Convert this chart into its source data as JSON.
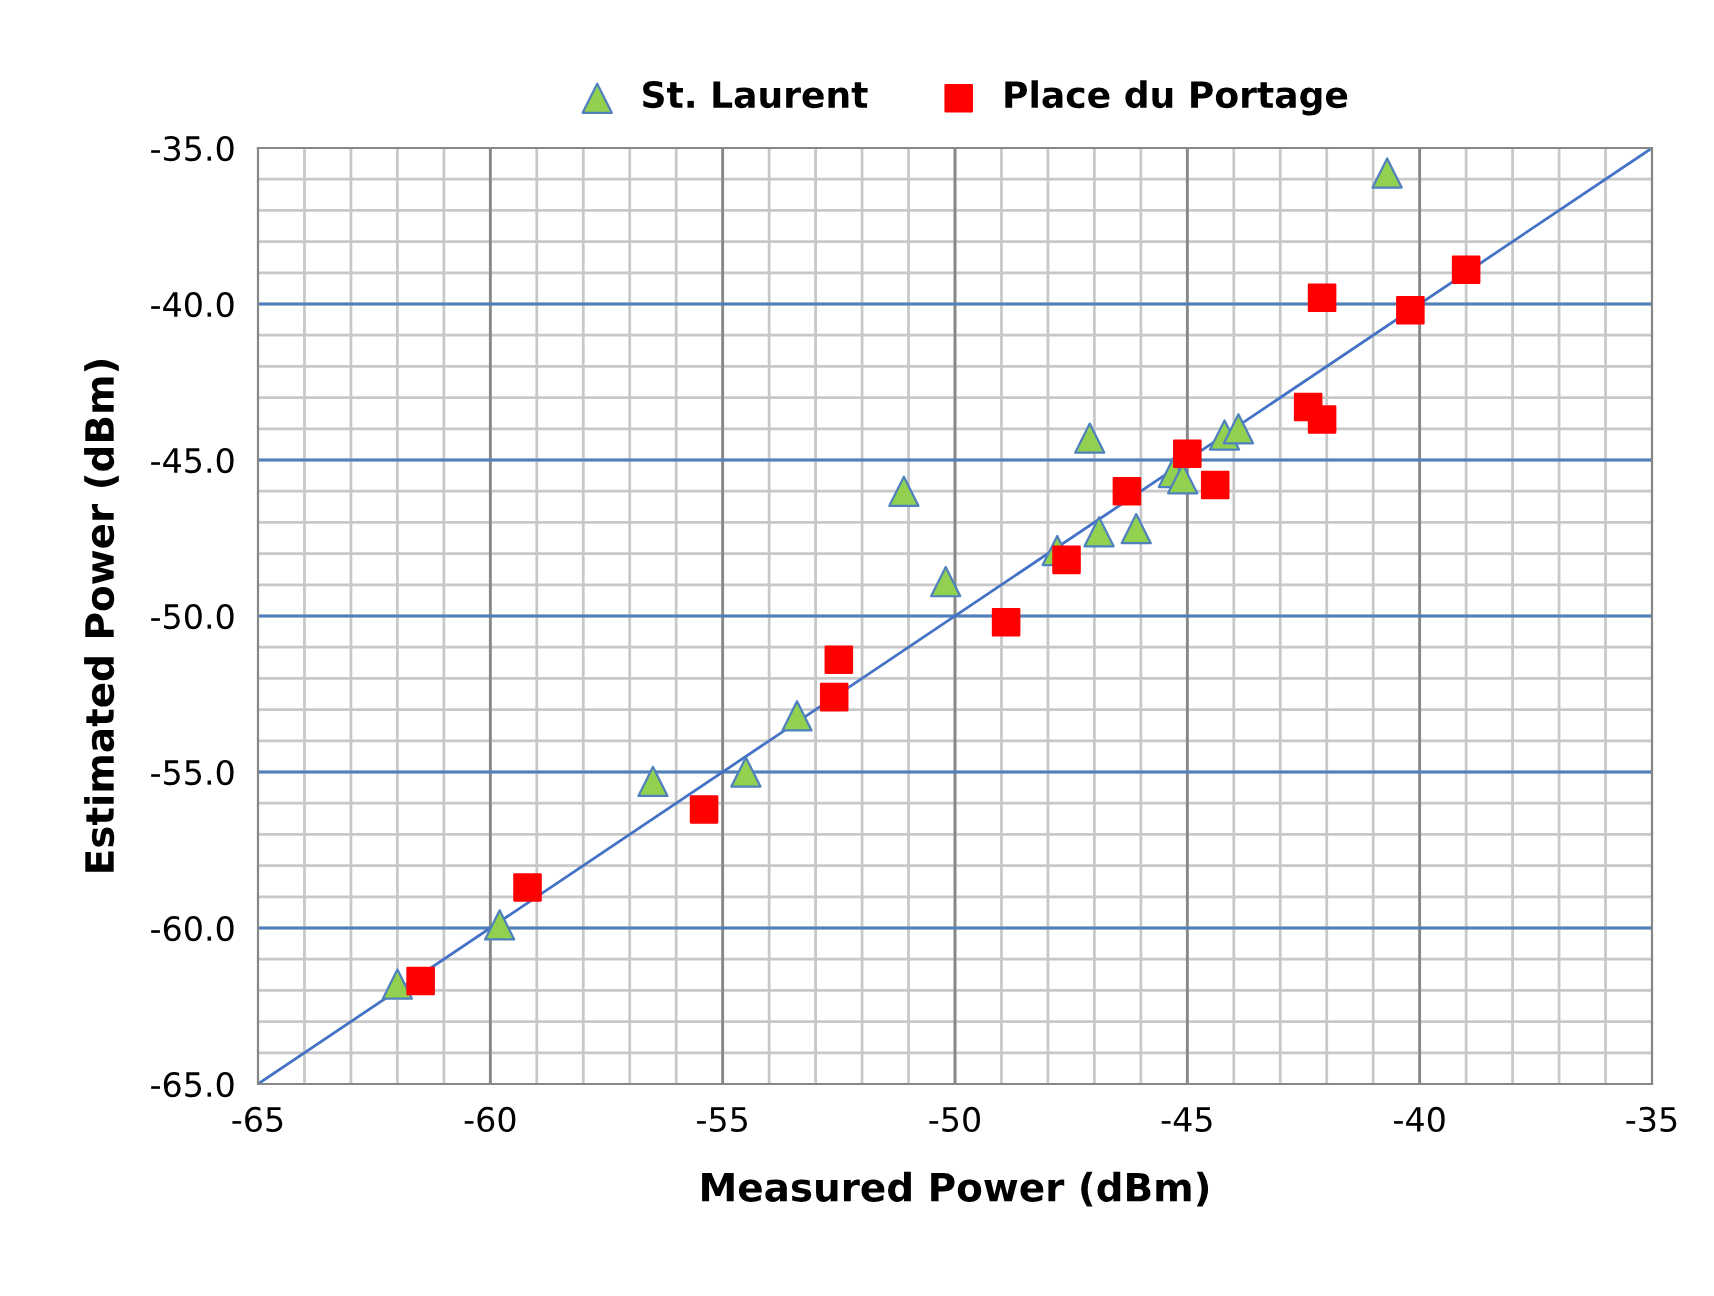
{
  "chart_data": {
    "type": "scatter",
    "xlabel": "Measured Power (dBm)",
    "ylabel": "Estimated Power (dBm)",
    "xlim": [
      -65,
      -35
    ],
    "xticks": [
      -65,
      -60,
      -55,
      -50,
      -45,
      -40,
      -35
    ],
    "ylim": [
      -65,
      -35
    ],
    "yticks": [
      {
        "value": -65,
        "label": "-65.0"
      },
      {
        "value": -60,
        "label": "-60.0"
      },
      {
        "value": -55,
        "label": "-55.0"
      },
      {
        "value": -50,
        "label": "-50.0"
      },
      {
        "value": -45,
        "label": "-45.0"
      },
      {
        "value": -40,
        "label": "-40.0"
      },
      {
        "value": -35,
        "label": "-35.0"
      }
    ],
    "grid": true,
    "legend": "top",
    "series": [
      {
        "type": "line",
        "color": "#4472c4",
        "marker": "none",
        "x": [
          -65,
          -35
        ],
        "values": [
          -65,
          -35
        ]
      },
      {
        "name": "St. Laurent",
        "marker": "triangle",
        "color": "#92d050",
        "x": [
          -40.7,
          -47.1,
          -44.2,
          -43.9,
          -45.3,
          -45.1,
          -46.9,
          -46.1,
          -47.8,
          -50.2,
          -51.1,
          -53.4,
          -56.5,
          -54.5,
          -59.8,
          -62.0
        ],
        "values": [
          -35.8,
          -44.3,
          -44.2,
          -44.0,
          -45.4,
          -45.6,
          -47.3,
          -47.2,
          -47.9,
          -48.9,
          -46.0,
          -53.2,
          -55.3,
          -55.0,
          -59.9,
          -61.8
        ]
      },
      {
        "name": "Place du Portage",
        "marker": "square",
        "color": "#ff0000",
        "x": [
          -39.0,
          -42.1,
          -40.2,
          -42.4,
          -42.1,
          -45.0,
          -44.4,
          -46.3,
          -47.6,
          -48.9,
          -52.5,
          -52.6,
          -55.4,
          -59.2,
          -61.5
        ],
        "values": [
          -38.9,
          -39.8,
          -40.2,
          -43.3,
          -43.7,
          -44.8,
          -45.8,
          -46.0,
          -48.2,
          -50.2,
          -51.4,
          -52.6,
          -56.2,
          -58.7,
          -61.7
        ]
      }
    ]
  }
}
